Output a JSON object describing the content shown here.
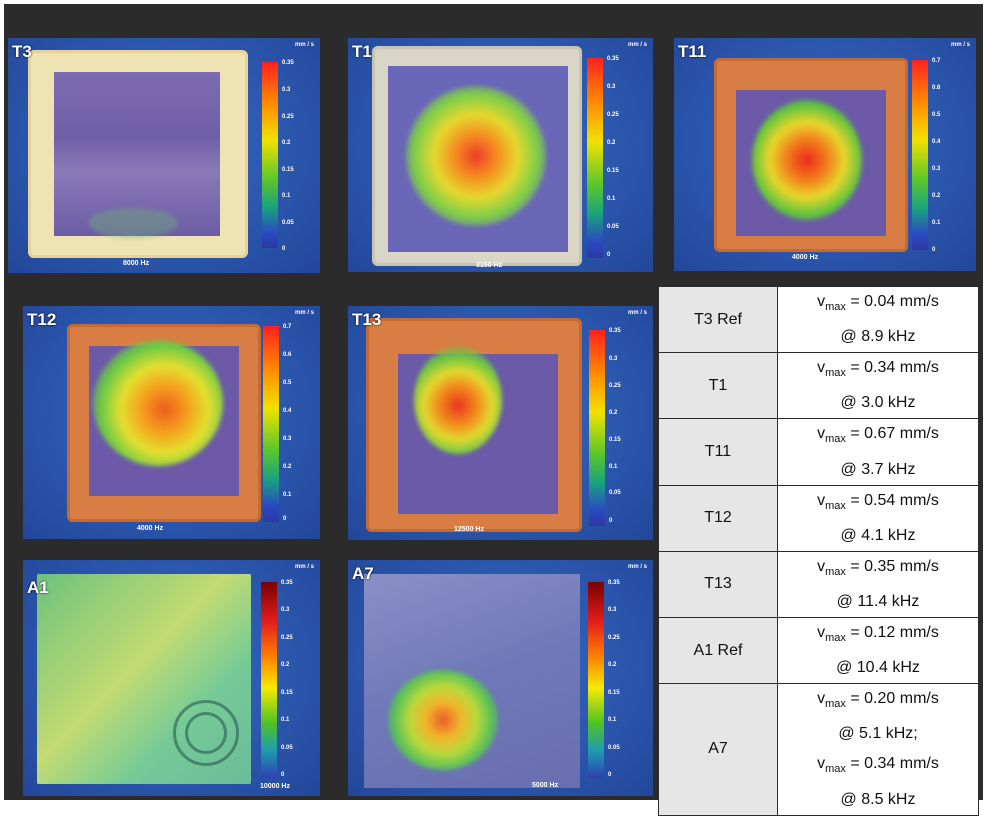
{
  "panels": [
    {
      "id": "T3",
      "freq": "8000 Hz",
      "unit": "mm / s",
      "ticks": [
        "0.35",
        "0.3",
        "0.25",
        "0.2",
        "0.15",
        "0.1",
        "0.05",
        "0"
      ]
    },
    {
      "id": "T1",
      "freq": "3150 Hz",
      "unit": "mm / s",
      "ticks": [
        "0.35",
        "0.3",
        "0.25",
        "0.2",
        "0.15",
        "0.1",
        "0.05",
        "0"
      ]
    },
    {
      "id": "T11",
      "freq": "4000 Hz",
      "unit": "mm / s",
      "ticks": [
        "0.7",
        "0.6",
        "0.5",
        "0.4",
        "0.3",
        "0.2",
        "0.1",
        "0"
      ]
    },
    {
      "id": "T12",
      "freq": "4000 Hz",
      "unit": "mm / s",
      "ticks": [
        "0.7",
        "0.6",
        "0.5",
        "0.4",
        "0.3",
        "0.2",
        "0.1",
        "0"
      ]
    },
    {
      "id": "T13",
      "freq": "12500 Hz",
      "unit": "mm / s",
      "ticks": [
        "0.35",
        "0.3",
        "0.25",
        "0.2",
        "0.15",
        "0.1",
        "0.05",
        "0"
      ]
    },
    {
      "id": "A1",
      "freq": "10000 Hz",
      "unit": "mm / s",
      "ticks": [
        "0.35",
        "0.3",
        "0.25",
        "0.2",
        "0.15",
        "0.1",
        "0.05",
        "0"
      ]
    },
    {
      "id": "A7",
      "freq": "5000 Hz",
      "unit": "mm / s",
      "ticks": [
        "0.35",
        "0.3",
        "0.25",
        "0.2",
        "0.15",
        "0.1",
        "0.05",
        "0"
      ]
    }
  ],
  "table": {
    "rows": [
      {
        "name": "T3 Ref",
        "lines": [
          {
            "v": "v",
            "sub": "max",
            "rest": " = 0.04 mm/s"
          },
          {
            "plain": "@ 8.9 kHz"
          }
        ]
      },
      {
        "name": "T1",
        "lines": [
          {
            "v": "v",
            "sub": "max",
            "rest": " = 0.34 mm/s"
          },
          {
            "plain": "@ 3.0 kHz"
          }
        ]
      },
      {
        "name": "T11",
        "lines": [
          {
            "v": "v",
            "sub": "max",
            "rest": " = 0.67 mm/s"
          },
          {
            "plain": "@ 3.7 kHz"
          }
        ]
      },
      {
        "name": "T12",
        "lines": [
          {
            "v": "v",
            "sub": "max",
            "rest": " = 0.54 mm/s"
          },
          {
            "plain": "@ 4.1 kHz"
          }
        ]
      },
      {
        "name": "T13",
        "lines": [
          {
            "v": "v",
            "sub": "max",
            "rest": " = 0.35 mm/s"
          },
          {
            "plain": "@ 11.4 kHz"
          }
        ]
      },
      {
        "name": "A1 Ref",
        "lines": [
          {
            "v": "v",
            "sub": "max",
            "rest": " = 0.12 mm/s"
          },
          {
            "plain": "@ 10.4 kHz"
          }
        ]
      },
      {
        "name": "A7",
        "lines": [
          {
            "v": "v",
            "sub": "max",
            "rest": " = 0.20 mm/s"
          },
          {
            "plain": "@ 5.1 kHz;"
          },
          {
            "v": "v",
            "sub": "max",
            "rest": " = 0.34 mm/s"
          },
          {
            "plain": "@ 8.5 kHz"
          }
        ]
      }
    ]
  }
}
